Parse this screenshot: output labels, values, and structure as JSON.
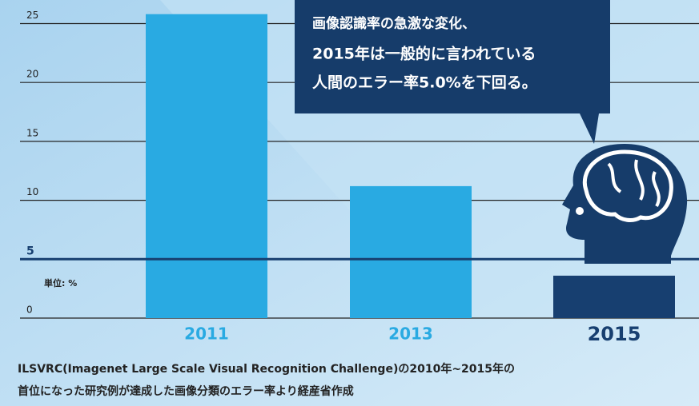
{
  "chart_data": {
    "type": "bar",
    "categories": [
      "2011",
      "2013",
      "2015"
    ],
    "values": [
      25.8,
      11.2,
      3.6
    ],
    "colors": [
      "#29aae2",
      "#29aae2",
      "#173f70"
    ],
    "ylim": [
      0,
      27
    ],
    "yticks": [
      0,
      5,
      10,
      15,
      20,
      25
    ],
    "grid": true,
    "reference_line": {
      "value": 5,
      "color": "#173f70"
    },
    "unit_label": "単位: %",
    "callout": [
      "画像認識率の急激な変化、",
      "2015年は一般的に言われている",
      "人間のエラー率5.0%を下回る。"
    ],
    "footnote": [
      "ILSVRC(Imagenet Large Scale Visual Recognition Challenge)の2010年~2015年の",
      "首位になった研究例が達成した画像分類のエラー率より経産省作成"
    ]
  }
}
